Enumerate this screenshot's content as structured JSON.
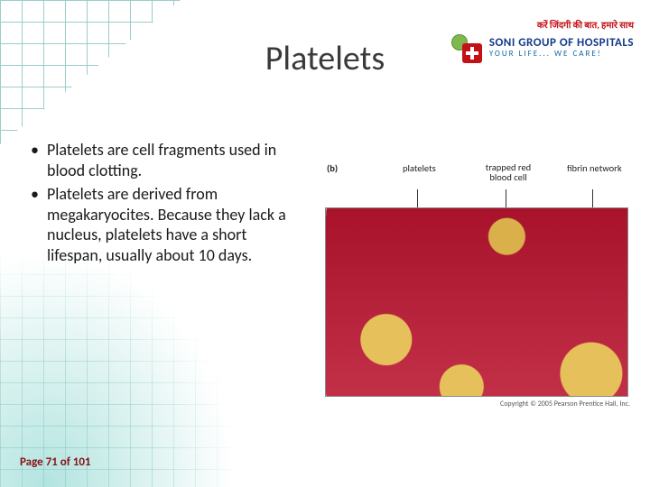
{
  "slide": {
    "title": "Platelets",
    "bullets": [
      "Platelets are cell fragments used in blood clotting.",
      "Platelets are derived from megakaryocites. Because they lack a nucleus, platelets have a short lifespan, usually about 10 days."
    ]
  },
  "logo": {
    "hindi_tagline": "करें जिंदगी की बात, हमारे साथ",
    "name": "SONI GROUP OF HOSPITALS",
    "tagline": "YOUR LIFE... WE CARE!"
  },
  "figure": {
    "panel_letter": "(b)",
    "labels": {
      "platelets": "platelets",
      "trapped_rbc": "trapped red blood cell",
      "fibrin": "fibrin network"
    },
    "leader_x": [
      102,
      200,
      296
    ],
    "copyright": "Copyright © 2005 Pearson Prentice Hall, Inc.",
    "colors": {
      "background_red": "#c23048",
      "cell_yellow": "#e6c05a",
      "fibrin_white": "#ffffff",
      "border": "#888888"
    }
  },
  "footer": {
    "page_label": "Page 71 of 101",
    "current": 71,
    "total": 101
  },
  "theme": {
    "title_color": "#3a3a3a",
    "title_fontsize": 38,
    "body_fontsize": 18,
    "footer_color": "#8a1016",
    "grid_color": "#4aa5a0",
    "brand_red": "#c31117",
    "brand_blue": "#133a8b",
    "brand_lightblue": "#0e6aa3",
    "background": "#ffffff"
  }
}
